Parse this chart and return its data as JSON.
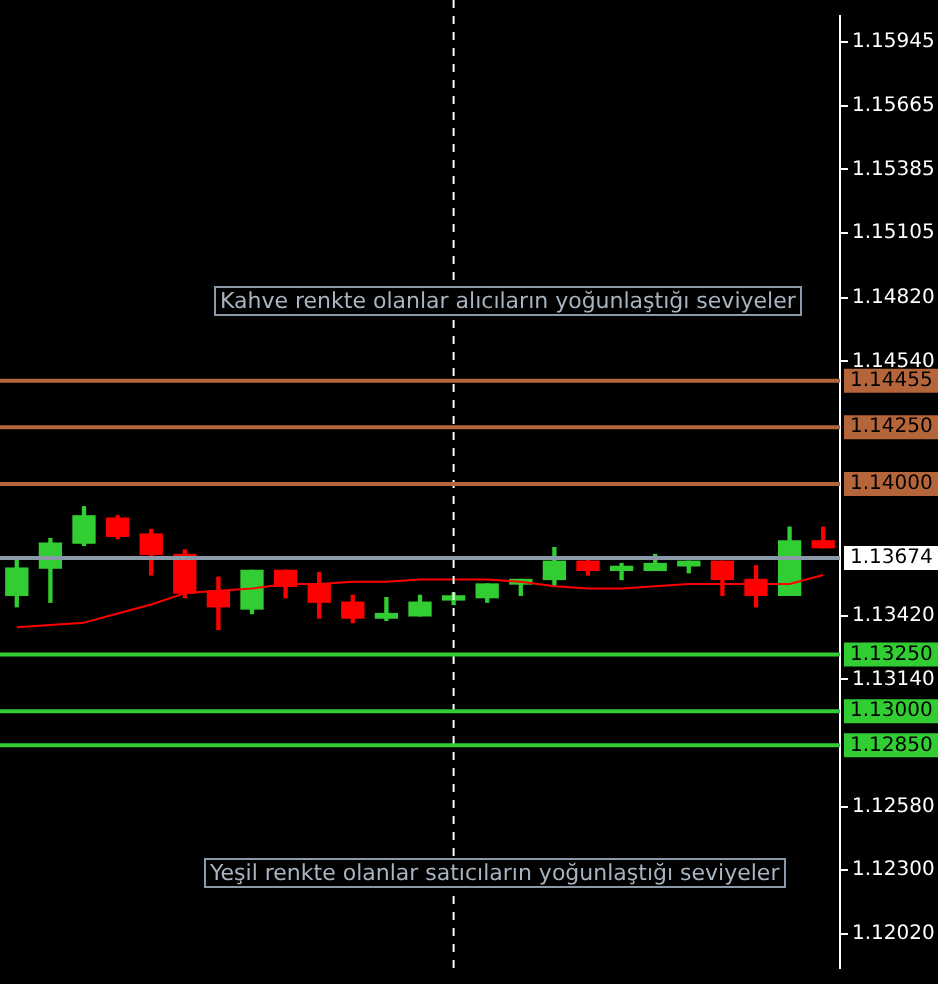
{
  "chart_data": {
    "type": "candlestick",
    "categories": [
      null,
      null,
      null,
      null,
      null,
      null,
      null,
      null,
      null,
      null,
      null,
      null,
      null,
      null,
      null,
      null,
      null,
      null,
      null,
      null,
      null,
      null,
      null,
      null,
      null
    ],
    "ohlc": [
      [
        1.1351,
        1.1368,
        1.1346,
        1.1363
      ],
      [
        1.1363,
        1.1376,
        1.1348,
        1.1374
      ],
      [
        1.1374,
        1.139,
        1.1373,
        1.1386
      ],
      [
        1.1385,
        1.1386,
        1.1376,
        1.1377
      ],
      [
        1.1378,
        1.138,
        1.136,
        1.1369
      ],
      [
        1.1369,
        1.1371,
        1.135,
        1.1352
      ],
      [
        1.1353,
        1.1359,
        1.1336,
        1.1346
      ],
      [
        1.1345,
        1.1362,
        1.1343,
        1.1362
      ],
      [
        1.1362,
        1.1362,
        1.135,
        1.1355
      ],
      [
        1.1356,
        1.1361,
        1.1341,
        1.1348
      ],
      [
        1.1348,
        1.1351,
        1.1339,
        1.1341
      ],
      [
        1.1341,
        1.135,
        1.134,
        1.1343
      ],
      [
        1.1342,
        1.1351,
        1.1342,
        1.1348
      ],
      [
        1.1349,
        1.1352,
        1.1347,
        1.135
      ],
      [
        1.135,
        1.1356,
        1.1348,
        1.1356
      ],
      [
        1.1356,
        1.1358,
        1.1351,
        1.1358
      ],
      [
        1.1358,
        1.1372,
        1.1355,
        1.1366
      ],
      [
        1.1366,
        1.1368,
        1.136,
        1.1362
      ],
      [
        1.1362,
        1.1365,
        1.1358,
        1.1363
      ],
      [
        1.1362,
        1.1369,
        1.1362,
        1.1365
      ],
      [
        1.1364,
        1.1366,
        1.1361,
        1.1366
      ],
      [
        1.1366,
        1.1366,
        1.1351,
        1.1358
      ],
      [
        1.1358,
        1.1364,
        1.1346,
        1.1351
      ],
      [
        1.1351,
        1.1381,
        1.1351,
        1.1375
      ],
      [
        1.1375,
        1.1381,
        1.1372,
        1.1372
      ]
    ],
    "colors": [
      "#32cd32",
      "#32cd32",
      "#32cd32",
      "#ff0000",
      "#ff0000",
      "#ff0000",
      "#ff0000",
      "#32cd32",
      "#ff0000",
      "#ff0000",
      "#ff0000",
      "#32cd32",
      "#32cd32",
      "#32cd32",
      "#32cd32",
      "#32cd32",
      "#32cd32",
      "#ff0000",
      "#32cd32",
      "#32cd32",
      "#32cd32",
      "#ff0000",
      "#ff0000",
      "#32cd32",
      "#ff0000"
    ],
    "series": [
      {
        "type": "line",
        "color": "#ff0000",
        "values": [
          1.1337,
          1.1338,
          1.1339,
          1.1343,
          1.1347,
          1.1352,
          1.1353,
          1.1354,
          1.1356,
          1.1356,
          1.1357,
          1.1357,
          1.1358,
          1.1358,
          1.1358,
          1.1357,
          1.1355,
          1.1354,
          1.1354,
          1.1355,
          1.1356,
          1.1356,
          1.1356,
          1.1356,
          1.136
        ]
      }
    ],
    "ylim": [
      1.1187,
      1.1606
    ],
    "yticks": [
      1.15945,
      1.15665,
      1.15385,
      1.15105,
      {
        "value": 1.1482,
        "label": "1.14820"
      },
      {
        "value": 1.1454,
        "label": "1.14540"
      },
      {
        "value": 1.1342,
        "label": "1.13420"
      },
      {
        "value": 1.1314,
        "label": "1.13140"
      },
      {
        "value": 1.1258,
        "label": "1.12580"
      },
      {
        "value": 1.123,
        "label": "1.12300"
      },
      {
        "value": 1.1202,
        "label": "1.12020"
      }
    ],
    "ref_lines": [
      {
        "axis": "y",
        "value": 1.14455,
        "label": "1.14455",
        "color": "#b5653a"
      },
      {
        "axis": "y",
        "value": 1.1425,
        "label": "1.14250",
        "color": "#b5653a"
      },
      {
        "axis": "y",
        "value": 1.14,
        "label": "1.14000",
        "color": "#b5653a"
      },
      {
        "axis": "y",
        "value": 1.13674,
        "label": "1.13674",
        "color": "#8a9aa8"
      },
      {
        "axis": "y",
        "value": 1.1325,
        "label": "1.13250",
        "color": "#32cd32"
      },
      {
        "axis": "y",
        "value": 1.13,
        "label": "1.13000",
        "color": "#32cd32"
      },
      {
        "axis": "y",
        "value": 1.1285,
        "label": "1.12850",
        "color": "#32cd32"
      }
    ],
    "annotations": [
      "Kahve renkte olanlar alıcıların yoğunlaştığı seviyeler",
      "Yeşil renkte olanlar satıcıların yoğunlaştığı seviyeler"
    ],
    "grid": false,
    "legend": false,
    "tick_labels": "y"
  }
}
